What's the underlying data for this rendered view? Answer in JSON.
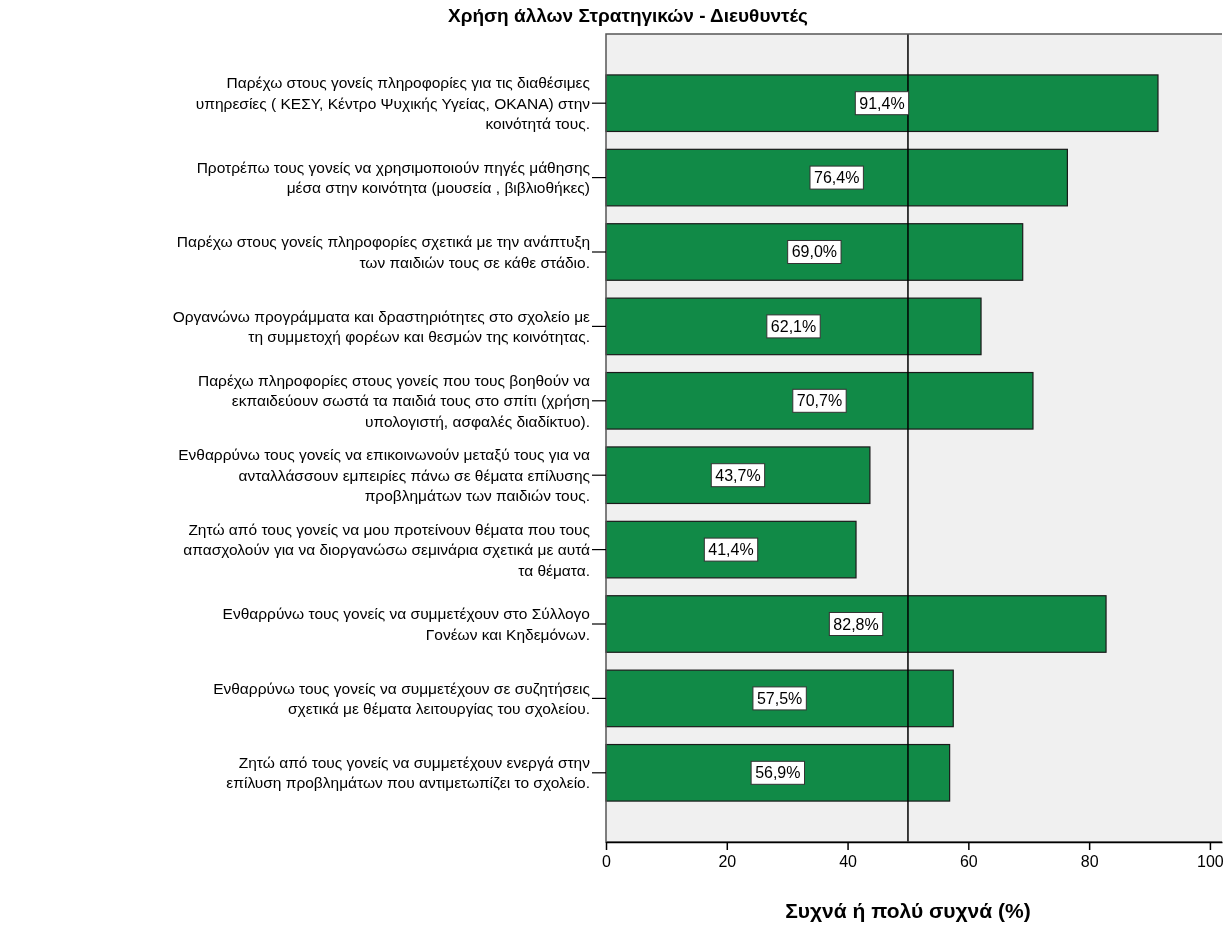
{
  "chart_data": {
    "type": "bar",
    "orientation": "horizontal",
    "title": "Χρήση άλλων Στρατηγικών - Διευθυντές",
    "xlabel": "Συχνά ή πολύ συχνά (%)",
    "categories": [
      "Παρέχω στους γονείς πληροφορίες για τις διαθέσιμες\nυπηρεσίες ( ΚΕΣΥ, Κέντρο Ψυχικής Υγείας, ΟΚΑΝΑ) στην\nκοινότητά τους.",
      "Προτρέπω τους γονείς να χρησιμοποιούν πηγές μάθησης\nμέσα στην κοινότητα (μουσεία , βιβλιοθήκες)",
      "Παρέχω στους γονείς πληροφορίες σχετικά με την ανάπτυξη\nτων παιδιών τους σε κάθε στάδιο.",
      "Οργανώνω προγράμματα και δραστηριότητες στο σχολείο με\nτη συμμετοχή φορέων και θεσμών της κοινότητας.",
      "Παρέχω πληροφορίες στους γονείς που τους βοηθούν να\nεκπαιδεύουν σωστά τα παιδιά τους στο σπίτι (χρήση\nυπολογιστή, ασφαλές διαδίκτυο).",
      "Ενθαρρύνω τους γονείς να επικοινωνούν μεταξύ τους για να\nανταλλάσσουν εμπειρίες πάνω σε θέματα επίλυσης\nπροβλημάτων των παιδιών τους.",
      "Ζητώ από τους γονείς να μου προτείνουν θέματα που τους\nαπασχολούν για να διοργανώσω σεμινάρια σχετικά με αυτά\nτα θέματα.",
      "Ενθαρρύνω τους γονείς να συμμετέχουν στο Σύλλογο\nΓονέων και Κηδεμόνων.",
      "Ενθαρρύνω τους γονείς να συμμετέχουν σε συζητήσεις\nσχετικά με θέματα λειτουργίας του σχολείου.",
      "Ζητώ από τους γονείς να συμμετέχουν ενεργά στην\nεπίλυση προβλημάτων που αντιμετωπίζει το σχολείο."
    ],
    "values": [
      91.4,
      76.4,
      69.0,
      62.1,
      70.7,
      43.7,
      41.4,
      82.8,
      57.5,
      56.9
    ],
    "value_labels": [
      "91,4%",
      "76,4%",
      "69,0%",
      "62,1%",
      "70,7%",
      "43,7%",
      "41,4%",
      "82,8%",
      "57,5%",
      "56,9%"
    ],
    "color": "#118a47",
    "xlim": [
      0,
      102
    ],
    "xticks": [
      0,
      20,
      40,
      60,
      80,
      100
    ],
    "ref_lines": [
      {
        "axis": "x",
        "value": 50,
        "color": "#000000"
      }
    ]
  }
}
